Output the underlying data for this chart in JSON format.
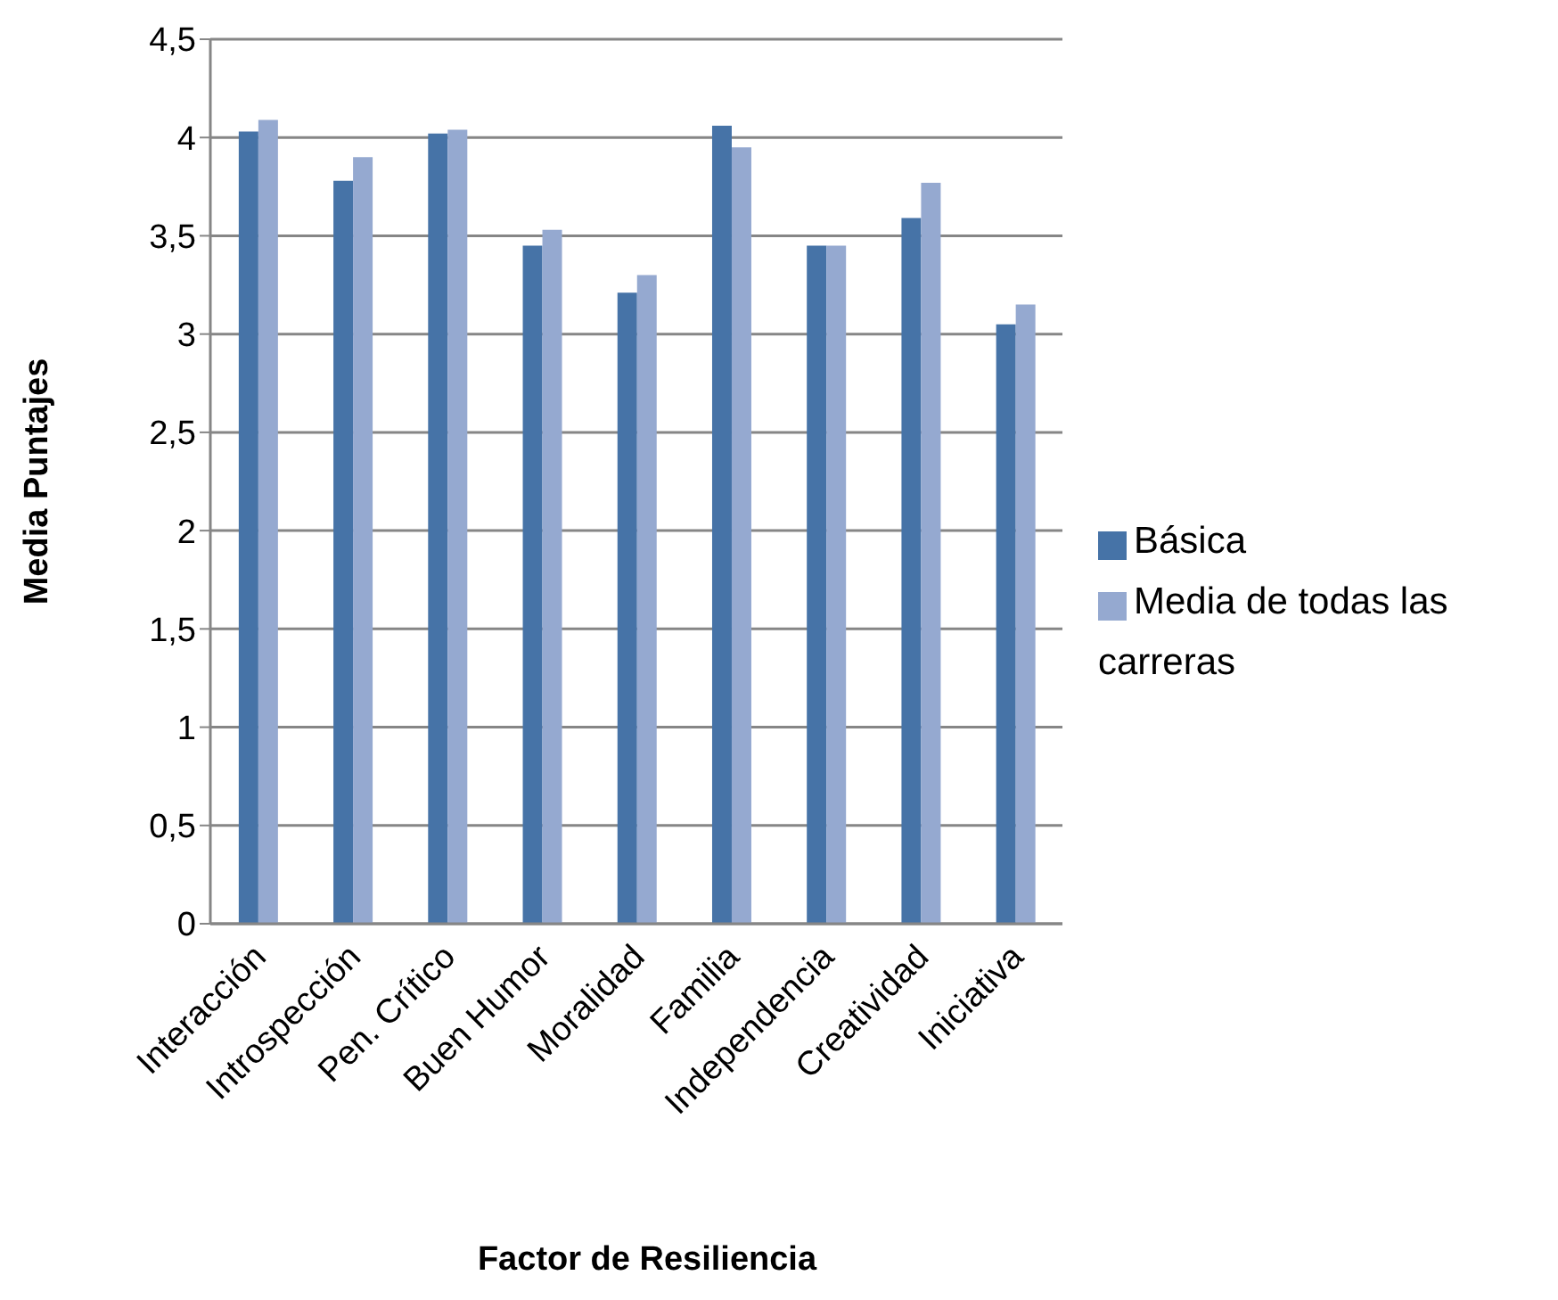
{
  "chart_data": {
    "type": "bar",
    "xlabel": "Factor de Resiliencia",
    "ylabel": "Media Puntajes",
    "categories": [
      "Interacción",
      "Introspección",
      "Pen. Crítico",
      "Buen Humor",
      "Moralidad",
      "Familia",
      "Independencia",
      "Creatividad",
      "Iniciativa"
    ],
    "series": [
      {
        "name": "Básica",
        "color": "#4673a7",
        "values": [
          4.03,
          3.78,
          4.02,
          3.45,
          3.21,
          4.06,
          3.45,
          3.59,
          3.05
        ]
      },
      {
        "name": "Media de todas las carreras",
        "color": "#95a9d0",
        "values": [
          4.09,
          3.9,
          4.04,
          3.53,
          3.3,
          3.95,
          3.45,
          3.77,
          3.15
        ]
      }
    ],
    "ylim": [
      0,
      4.5
    ],
    "yticks": [
      0,
      {
        "value": 0.5,
        "label": "0,5"
      },
      1,
      {
        "value": 1.5,
        "label": "1,5"
      },
      2,
      {
        "value": 2.5,
        "label": "2,5"
      },
      3,
      {
        "value": 3.5,
        "label": "3,5"
      },
      4,
      {
        "value": 4.5,
        "label": "4,5"
      }
    ],
    "grid": "y",
    "legend": "right"
  }
}
